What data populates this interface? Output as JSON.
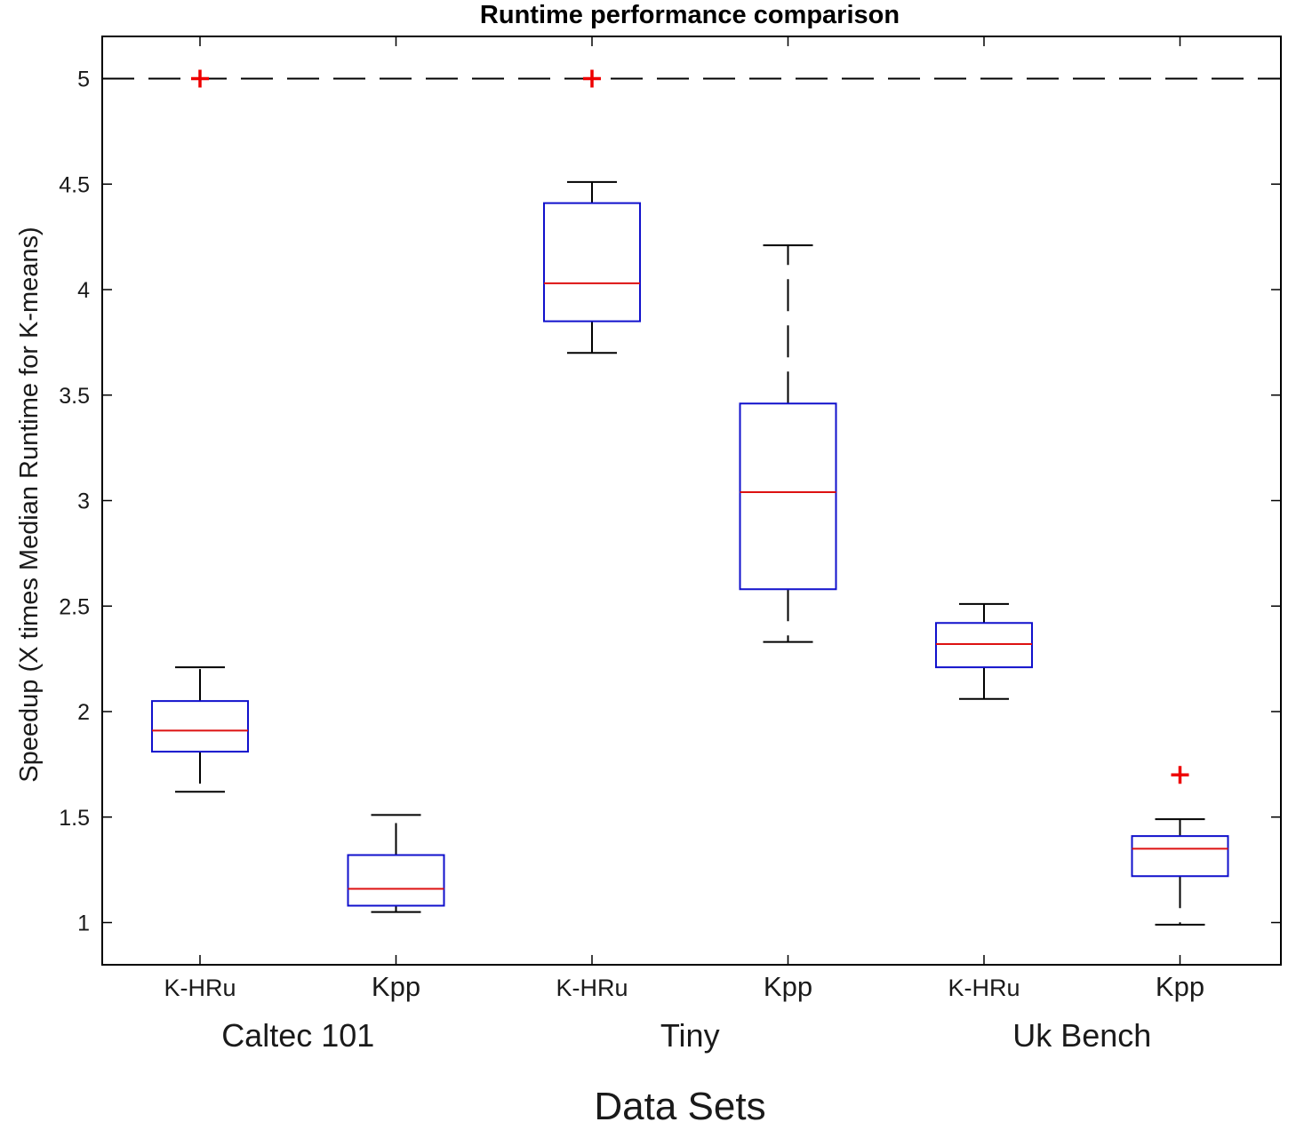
{
  "chart_data": {
    "type": "box",
    "title": "Runtime performance comparison",
    "xlabel": "Data Sets",
    "ylabel": "Speedup (X times Median Runtime for K-means)",
    "ylim": [
      0.8,
      5.2
    ],
    "yticks": [
      1,
      1.5,
      2,
      2.5,
      3,
      3.5,
      4,
      4.5,
      5
    ],
    "reference_line": {
      "y": 5,
      "style": "dashed",
      "color": "#000000"
    },
    "groups": [
      "Caltec 101",
      "Tiny",
      "Uk Bench"
    ],
    "categories": [
      "K-HRu",
      "Kpp",
      "K-HRu",
      "Kpp",
      "K-HRu",
      "Kpp"
    ],
    "boxes": [
      {
        "label": "K-HRu",
        "group": "Caltec 101",
        "whisker_low": 1.62,
        "q1": 1.81,
        "median": 1.91,
        "q3": 2.05,
        "whisker_high": 2.21,
        "outliers": [
          5.0
        ]
      },
      {
        "label": "Kpp",
        "group": "Caltec 101",
        "whisker_low": 1.05,
        "q1": 1.08,
        "median": 1.16,
        "q3": 1.32,
        "whisker_high": 1.51,
        "outliers": []
      },
      {
        "label": "K-HRu",
        "group": "Tiny",
        "whisker_low": 3.7,
        "q1": 3.85,
        "median": 4.03,
        "q3": 4.41,
        "whisker_high": 4.51,
        "outliers": [
          5.0
        ]
      },
      {
        "label": "Kpp",
        "group": "Tiny",
        "whisker_low": 2.33,
        "q1": 2.58,
        "median": 3.04,
        "q3": 3.46,
        "whisker_high": 4.21,
        "outliers": []
      },
      {
        "label": "K-HRu",
        "group": "Uk Bench",
        "whisker_low": 2.06,
        "q1": 2.21,
        "median": 2.32,
        "q3": 2.42,
        "whisker_high": 2.51,
        "outliers": []
      },
      {
        "label": "Kpp",
        "group": "Uk Bench",
        "whisker_low": 0.99,
        "q1": 1.22,
        "median": 1.35,
        "q3": 1.41,
        "whisker_high": 1.49,
        "outliers": [
          1.7
        ]
      }
    ],
    "colors": {
      "box": "#1010cc",
      "median": "#dd1111",
      "whisker": "#000000",
      "outlier": "#ee0000"
    },
    "grid": false
  }
}
